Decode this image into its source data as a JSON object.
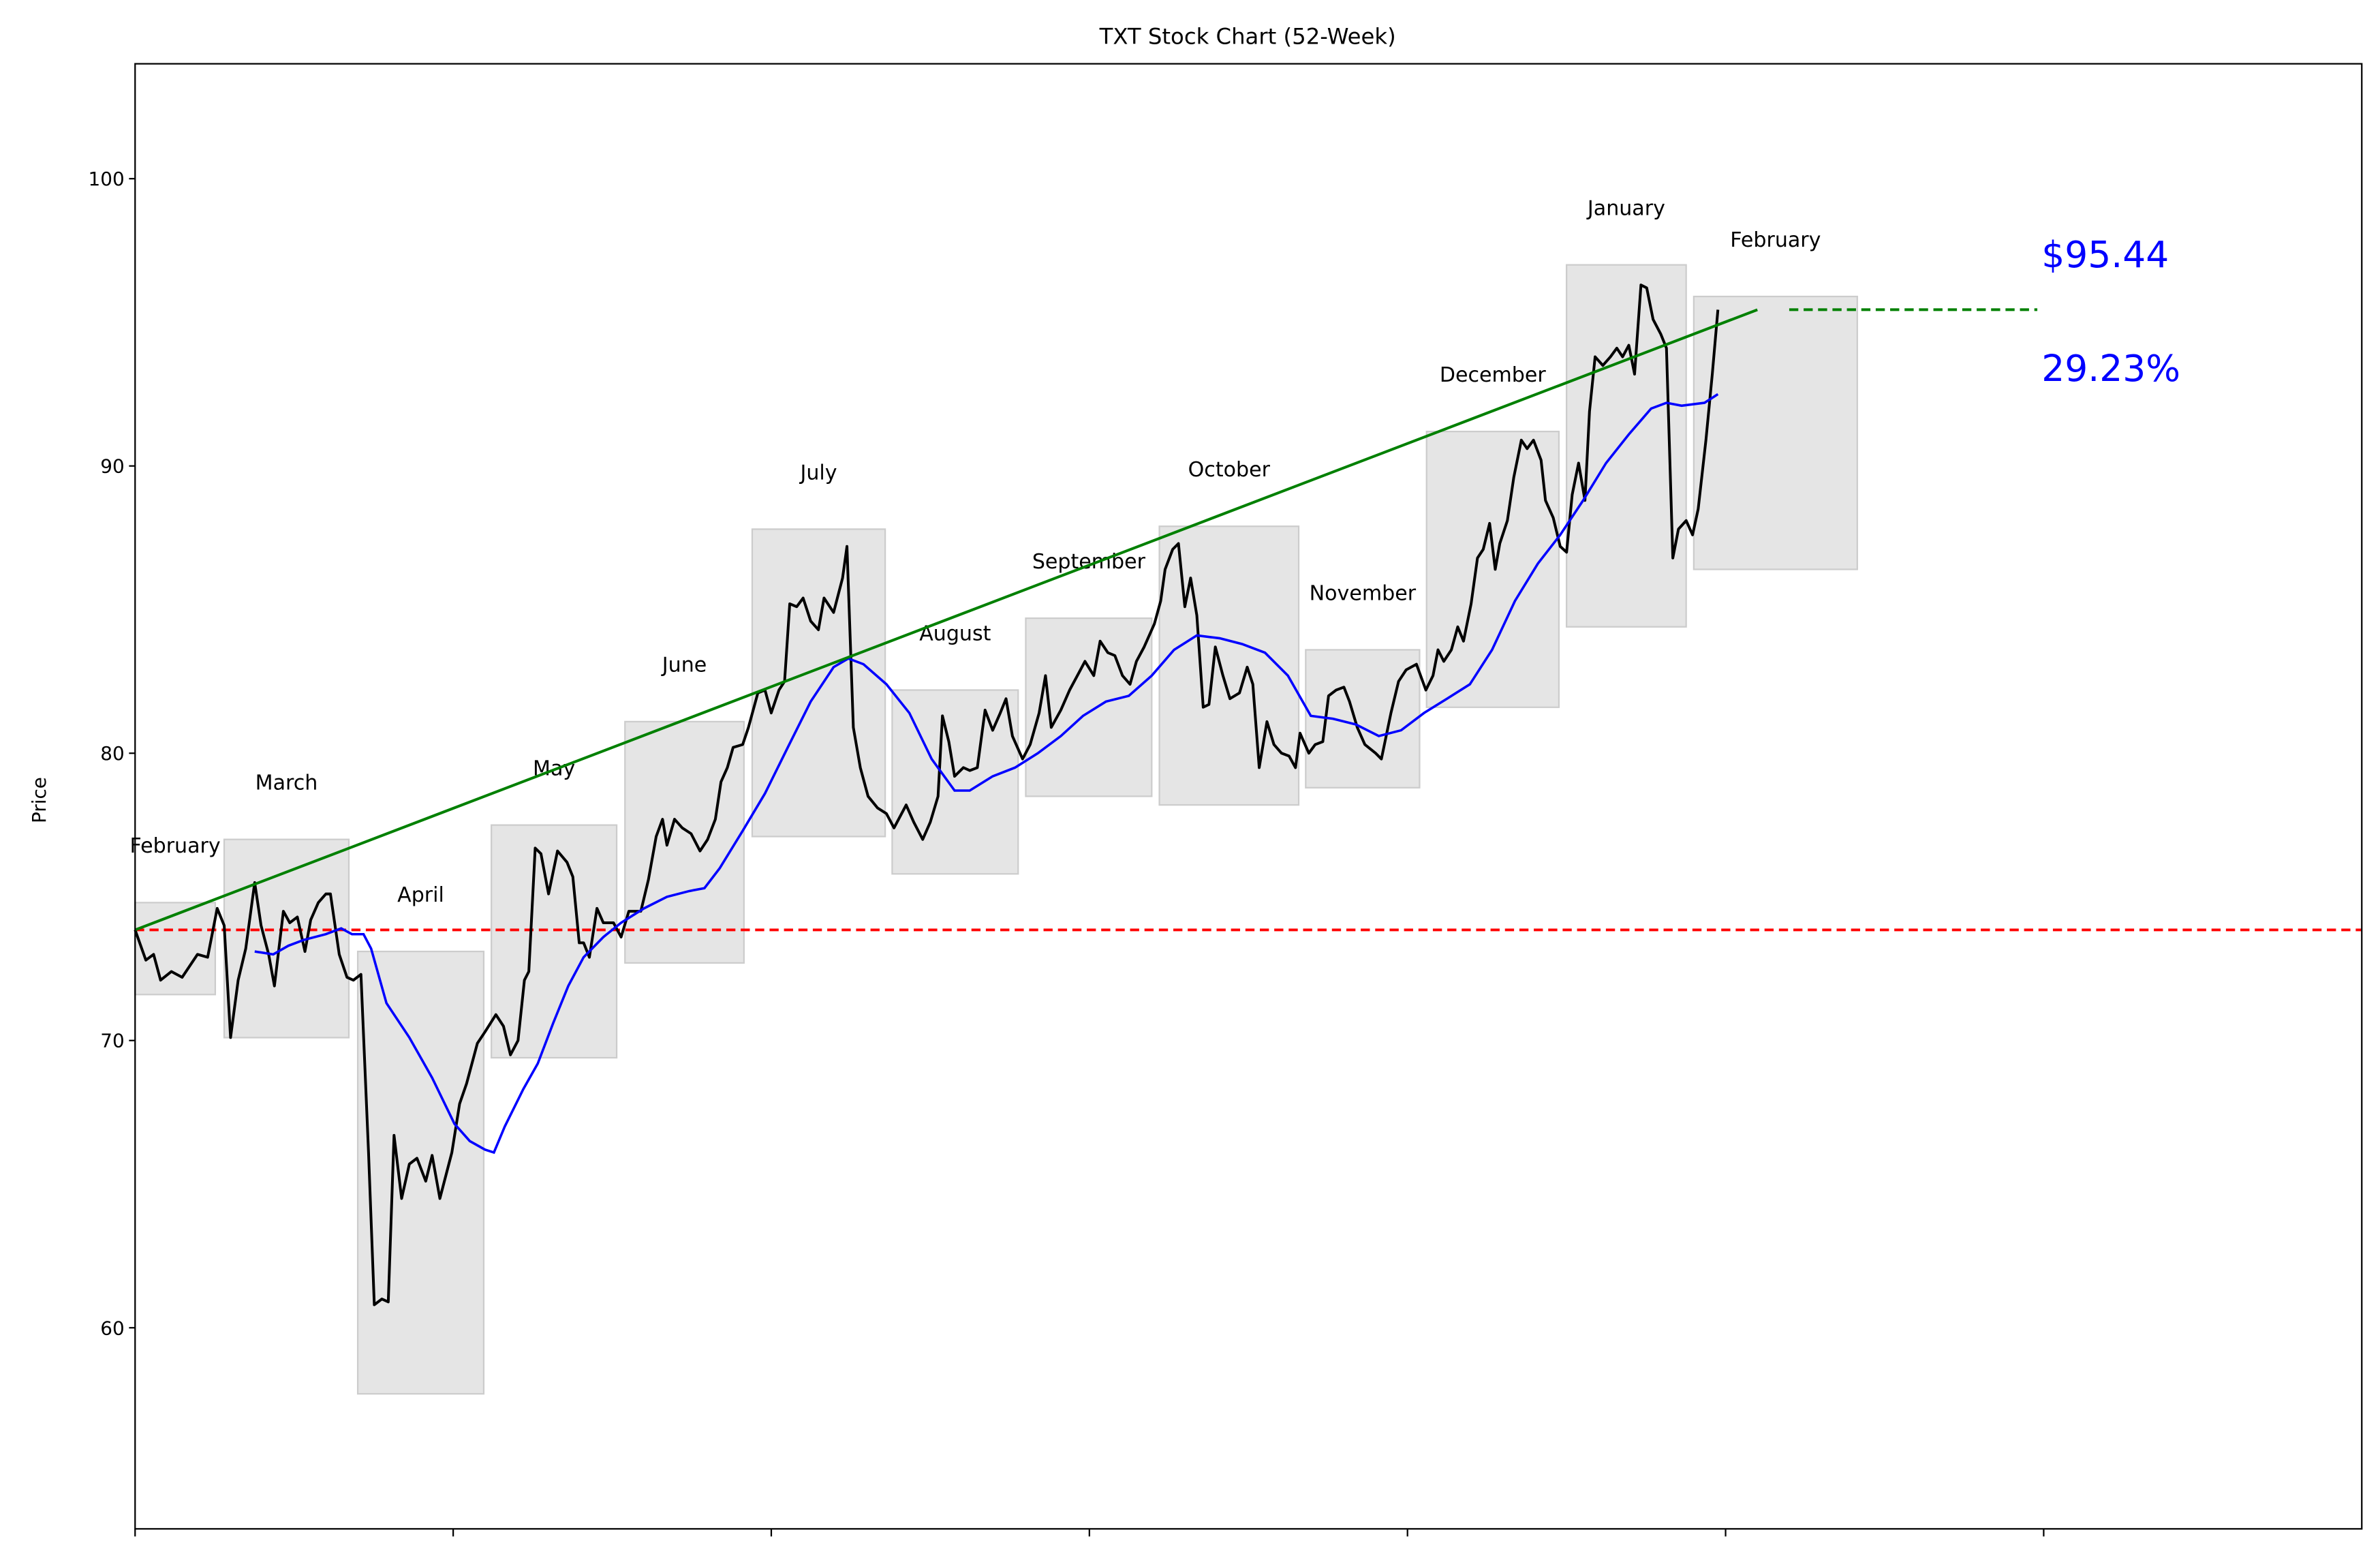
{
  "chart_data": {
    "type": "line",
    "title": "TXT Stock Chart (52-Week)",
    "xlabel": "",
    "ylabel": "Price",
    "xlim": [
      0,
      350
    ],
    "ylim": [
      53,
      104
    ],
    "x_ticks": [
      0,
      50,
      100,
      150,
      200,
      250,
      300
    ],
    "x_tick_labels_visible": false,
    "y_ticks": [
      60,
      70,
      80,
      90,
      100
    ],
    "y_tick_labels": [
      "60",
      "70",
      "80",
      "90",
      "100"
    ],
    "grid": false,
    "colors": {
      "price": "#000000",
      "moving_average": "#0000ff",
      "trend": "#008000",
      "baseline": "#ff0000",
      "annotation": "#0000ff",
      "month_box": "#e5e5e5"
    },
    "price": [
      [
        0,
        73.85
      ],
      [
        1.7,
        72.8
      ],
      [
        2.9,
        73.0
      ],
      [
        4,
        72.1
      ],
      [
        5.7,
        72.4
      ],
      [
        7.4,
        72.2
      ],
      [
        9.8,
        73.0
      ],
      [
        11.4,
        72.9
      ],
      [
        12.9,
        74.6
      ],
      [
        14,
        74.0
      ],
      [
        15,
        70.1
      ],
      [
        16.2,
        72.1
      ],
      [
        17.4,
        73.2
      ],
      [
        18.8,
        75.5
      ],
      [
        19.8,
        74.0
      ],
      [
        21,
        73.0
      ],
      [
        21.9,
        71.9
      ],
      [
        23.3,
        74.5
      ],
      [
        24.3,
        74.1
      ],
      [
        25.5,
        74.3
      ],
      [
        26.7,
        73.1
      ],
      [
        27.6,
        74.2
      ],
      [
        28.8,
        74.8
      ],
      [
        30,
        75.1
      ],
      [
        30.7,
        75.1
      ],
      [
        32.1,
        73.0
      ],
      [
        33.3,
        72.2
      ],
      [
        34.3,
        72.1
      ],
      [
        35.5,
        72.3
      ],
      [
        36.7,
        66.1
      ],
      [
        37.6,
        60.8
      ],
      [
        38.8,
        61.0
      ],
      [
        39.8,
        60.9
      ],
      [
        40.7,
        66.7
      ],
      [
        41.9,
        64.5
      ],
      [
        43.1,
        65.7
      ],
      [
        44.3,
        65.9
      ],
      [
        45.7,
        65.1
      ],
      [
        46.7,
        66.0
      ],
      [
        47.9,
        64.5
      ],
      [
        49.8,
        66.1
      ],
      [
        51,
        67.8
      ],
      [
        52.1,
        68.5
      ],
      [
        53.8,
        69.9
      ],
      [
        55,
        70.3
      ],
      [
        56.7,
        70.9
      ],
      [
        57.9,
        70.5
      ],
      [
        59,
        69.5
      ],
      [
        60.2,
        70.0
      ],
      [
        61.2,
        72.1
      ],
      [
        61.9,
        72.4
      ],
      [
        62.9,
        76.7
      ],
      [
        63.8,
        76.5
      ],
      [
        65,
        75.1
      ],
      [
        66.4,
        76.6
      ],
      [
        67.9,
        76.2
      ],
      [
        68.8,
        75.7
      ],
      [
        69.8,
        73.4
      ],
      [
        70.5,
        73.4
      ],
      [
        71.4,
        72.9
      ],
      [
        72.6,
        74.6
      ],
      [
        73.6,
        74.1
      ],
      [
        75.2,
        74.1
      ],
      [
        76.4,
        73.6
      ],
      [
        77.6,
        74.5
      ],
      [
        79.5,
        74.5
      ],
      [
        80.7,
        75.6
      ],
      [
        81.9,
        77.1
      ],
      [
        82.9,
        77.7
      ],
      [
        83.6,
        76.8
      ],
      [
        84.8,
        77.7
      ],
      [
        86,
        77.4
      ],
      [
        87.4,
        77.2
      ],
      [
        88.8,
        76.6
      ],
      [
        90,
        77.0
      ],
      [
        91.2,
        77.7
      ],
      [
        92.1,
        79.0
      ],
      [
        93.1,
        79.5
      ],
      [
        94,
        80.2
      ],
      [
        95.5,
        80.3
      ],
      [
        96.4,
        80.9
      ],
      [
        97.9,
        82.1
      ],
      [
        99,
        82.2
      ],
      [
        100,
        81.4
      ],
      [
        101.2,
        82.2
      ],
      [
        102.1,
        82.5
      ],
      [
        102.9,
        85.2
      ],
      [
        104,
        85.1
      ],
      [
        105,
        85.4
      ],
      [
        106.2,
        84.6
      ],
      [
        107.4,
        84.3
      ],
      [
        108.3,
        85.4
      ],
      [
        109.8,
        84.9
      ],
      [
        111.2,
        86.1
      ],
      [
        111.9,
        87.2
      ],
      [
        112.9,
        80.9
      ],
      [
        114,
        79.5
      ],
      [
        115.2,
        78.5
      ],
      [
        116.7,
        78.1
      ],
      [
        118.1,
        77.9
      ],
      [
        119.3,
        77.4
      ],
      [
        121.2,
        78.2
      ],
      [
        122.4,
        77.6
      ],
      [
        123.8,
        77.0
      ],
      [
        125,
        77.6
      ],
      [
        126.2,
        78.5
      ],
      [
        126.9,
        81.3
      ],
      [
        127.9,
        80.4
      ],
      [
        128.8,
        79.2
      ],
      [
        130.2,
        79.5
      ],
      [
        131.2,
        79.4
      ],
      [
        132.4,
        79.5
      ],
      [
        133.6,
        81.5
      ],
      [
        134.8,
        80.8
      ],
      [
        136,
        81.4
      ],
      [
        136.9,
        81.9
      ],
      [
        137.9,
        80.6
      ],
      [
        139.5,
        79.8
      ],
      [
        140.7,
        80.3
      ],
      [
        142.1,
        81.4
      ],
      [
        143.1,
        82.7
      ],
      [
        144,
        80.9
      ],
      [
        145.5,
        81.5
      ],
      [
        146.9,
        82.2
      ],
      [
        148.1,
        82.7
      ],
      [
        149.3,
        83.2
      ],
      [
        150.7,
        82.7
      ],
      [
        151.7,
        83.9
      ],
      [
        152.9,
        83.5
      ],
      [
        154,
        83.4
      ],
      [
        155.2,
        82.7
      ],
      [
        156.4,
        82.4
      ],
      [
        157.4,
        83.2
      ],
      [
        158.6,
        83.7
      ],
      [
        160.2,
        84.5
      ],
      [
        161.2,
        85.3
      ],
      [
        161.9,
        86.4
      ],
      [
        163.1,
        87.1
      ],
      [
        164,
        87.3
      ],
      [
        165,
        85.1
      ],
      [
        165.9,
        86.1
      ],
      [
        166.9,
        84.8
      ],
      [
        167.9,
        81.6
      ],
      [
        168.8,
        81.7
      ],
      [
        169.8,
        83.7
      ],
      [
        171,
        82.7
      ],
      [
        172.1,
        81.9
      ],
      [
        173.6,
        82.1
      ],
      [
        174.8,
        83.0
      ],
      [
        175.7,
        82.4
      ],
      [
        176.7,
        79.5
      ],
      [
        177.9,
        81.1
      ],
      [
        179,
        80.3
      ],
      [
        180.2,
        80.0
      ],
      [
        181.4,
        79.9
      ],
      [
        182.4,
        79.5
      ],
      [
        183.1,
        80.7
      ],
      [
        184.5,
        80.0
      ],
      [
        185.5,
        80.3
      ],
      [
        186.7,
        80.4
      ],
      [
        187.6,
        82.0
      ],
      [
        188.8,
        82.2
      ],
      [
        190,
        82.3
      ],
      [
        190.9,
        81.8
      ],
      [
        192.1,
        80.9
      ],
      [
        193.3,
        80.3
      ],
      [
        195,
        80.0
      ],
      [
        195.9,
        79.8
      ],
      [
        197.4,
        81.4
      ],
      [
        198.6,
        82.5
      ],
      [
        199.8,
        82.9
      ],
      [
        201.4,
        83.1
      ],
      [
        202.9,
        82.2
      ],
      [
        204,
        82.7
      ],
      [
        204.8,
        83.6
      ],
      [
        205.7,
        83.2
      ],
      [
        206.9,
        83.6
      ],
      [
        207.9,
        84.4
      ],
      [
        208.8,
        83.9
      ],
      [
        210,
        85.2
      ],
      [
        211,
        86.8
      ],
      [
        211.9,
        87.1
      ],
      [
        212.9,
        88.0
      ],
      [
        213.8,
        86.4
      ],
      [
        214.5,
        87.3
      ],
      [
        215.7,
        88.1
      ],
      [
        216.7,
        89.6
      ],
      [
        217.9,
        90.9
      ],
      [
        218.8,
        90.6
      ],
      [
        219.8,
        90.9
      ],
      [
        221,
        90.2
      ],
      [
        221.7,
        88.8
      ],
      [
        222.9,
        88.2
      ],
      [
        224,
        87.2
      ],
      [
        225,
        87.0
      ],
      [
        225.9,
        89.0
      ],
      [
        226.9,
        90.1
      ],
      [
        227.9,
        88.8
      ],
      [
        228.6,
        91.9
      ],
      [
        229.5,
        93.8
      ],
      [
        230.7,
        93.5
      ],
      [
        231.9,
        93.8
      ],
      [
        232.9,
        94.1
      ],
      [
        233.8,
        93.8
      ],
      [
        234.8,
        94.2
      ],
      [
        235.7,
        93.2
      ],
      [
        236.7,
        96.3
      ],
      [
        237.6,
        96.2
      ],
      [
        238.6,
        95.1
      ],
      [
        239.8,
        94.6
      ],
      [
        240.7,
        94.1
      ],
      [
        241.7,
        86.8
      ],
      [
        242.6,
        87.8
      ],
      [
        243.8,
        88.1
      ],
      [
        244.8,
        87.6
      ],
      [
        245.7,
        88.5
      ],
      [
        246.9,
        90.9
      ],
      [
        247.9,
        93.2
      ],
      [
        248.8,
        95.44
      ]
    ],
    "moving_average": [
      [
        18.8,
        73.1
      ],
      [
        21.7,
        73.0
      ],
      [
        24.1,
        73.3
      ],
      [
        26.5,
        73.5
      ],
      [
        30,
        73.7
      ],
      [
        32.4,
        73.9
      ],
      [
        34.1,
        73.7
      ],
      [
        35.9,
        73.7
      ],
      [
        37.1,
        73.2
      ],
      [
        39.5,
        71.3
      ],
      [
        43.1,
        70.1
      ],
      [
        46.7,
        68.7
      ],
      [
        50.2,
        67.1
      ],
      [
        52.6,
        66.5
      ],
      [
        55,
        66.2
      ],
      [
        56.4,
        66.1
      ],
      [
        58.1,
        67.0
      ],
      [
        61,
        68.3
      ],
      [
        63.3,
        69.2
      ],
      [
        65.7,
        70.6
      ],
      [
        68.1,
        71.9
      ],
      [
        70.5,
        72.9
      ],
      [
        73.6,
        73.6
      ],
      [
        76.4,
        74.1
      ],
      [
        80,
        74.6
      ],
      [
        83.6,
        75.0
      ],
      [
        87.1,
        75.2
      ],
      [
        89.5,
        75.3
      ],
      [
        91.9,
        76.0
      ],
      [
        95.5,
        77.3
      ],
      [
        99,
        78.6
      ],
      [
        102.6,
        80.2
      ],
      [
        106.2,
        81.8
      ],
      [
        109.8,
        83.0
      ],
      [
        112.1,
        83.3
      ],
      [
        114.5,
        83.1
      ],
      [
        118.1,
        82.4
      ],
      [
        121.7,
        81.4
      ],
      [
        125.2,
        79.8
      ],
      [
        128.8,
        78.7
      ],
      [
        131.2,
        78.7
      ],
      [
        134.8,
        79.2
      ],
      [
        138.3,
        79.5
      ],
      [
        141.9,
        80.0
      ],
      [
        145.5,
        80.6
      ],
      [
        149,
        81.3
      ],
      [
        152.6,
        81.8
      ],
      [
        156.2,
        82.0
      ],
      [
        159.8,
        82.7
      ],
      [
        163.3,
        83.6
      ],
      [
        166.9,
        84.1
      ],
      [
        170.5,
        84.0
      ],
      [
        174,
        83.8
      ],
      [
        177.6,
        83.5
      ],
      [
        181.2,
        82.7
      ],
      [
        184.8,
        81.3
      ],
      [
        188.3,
        81.2
      ],
      [
        191.9,
        81.0
      ],
      [
        195.5,
        80.6
      ],
      [
        199,
        80.8
      ],
      [
        202.6,
        81.4
      ],
      [
        206.2,
        81.9
      ],
      [
        209.8,
        82.4
      ],
      [
        213.3,
        83.6
      ],
      [
        216.9,
        85.3
      ],
      [
        220.5,
        86.6
      ],
      [
        224,
        87.6
      ],
      [
        227.6,
        88.8
      ],
      [
        231.2,
        90.1
      ],
      [
        234.8,
        91.1
      ],
      [
        238.3,
        92.0
      ],
      [
        240.7,
        92.2
      ],
      [
        243.1,
        92.1
      ],
      [
        246.7,
        92.2
      ],
      [
        248.8,
        92.5
      ]
    ],
    "baseline_price": 73.85,
    "trend_line": [
      [
        0,
        73.85
      ],
      [
        255,
        95.44
      ]
    ],
    "projection_line": {
      "x": [
        260,
        299
      ],
      "y": 95.44
    },
    "months": [
      {
        "label": "February",
        "x": [
          0,
          12.6
        ],
        "low": 71.6,
        "high": 74.8
      },
      {
        "label": "March",
        "x": [
          14,
          33.6
        ],
        "low": 70.1,
        "high": 77.0
      },
      {
        "label": "April",
        "x": [
          35,
          54.8
        ],
        "low": 57.7,
        "high": 73.1
      },
      {
        "label": "May",
        "x": [
          56,
          75.7
        ],
        "low": 69.4,
        "high": 77.5
      },
      {
        "label": "June",
        "x": [
          77,
          95.7
        ],
        "low": 72.7,
        "high": 81.1
      },
      {
        "label": "July",
        "x": [
          97,
          117.9
        ],
        "low": 77.1,
        "high": 87.8
      },
      {
        "label": "August",
        "x": [
          119,
          138.8
        ],
        "low": 75.8,
        "high": 82.2
      },
      {
        "label": "September",
        "x": [
          140,
          159.8
        ],
        "low": 78.5,
        "high": 84.7
      },
      {
        "label": "October",
        "x": [
          161,
          182.9
        ],
        "low": 78.2,
        "high": 87.9
      },
      {
        "label": "November",
        "x": [
          184,
          201.9
        ],
        "low": 78.8,
        "high": 83.6
      },
      {
        "label": "December",
        "x": [
          203,
          223.8
        ],
        "low": 81.6,
        "high": 91.2
      },
      {
        "label": "January",
        "x": [
          225,
          243.8
        ],
        "low": 84.4,
        "high": 97.0
      },
      {
        "label": "February",
        "x": [
          245,
          270.7
        ],
        "low": 86.4,
        "high": 95.9
      }
    ],
    "annotations": {
      "price_label": "$95.44",
      "change_label": "29.23%"
    }
  }
}
